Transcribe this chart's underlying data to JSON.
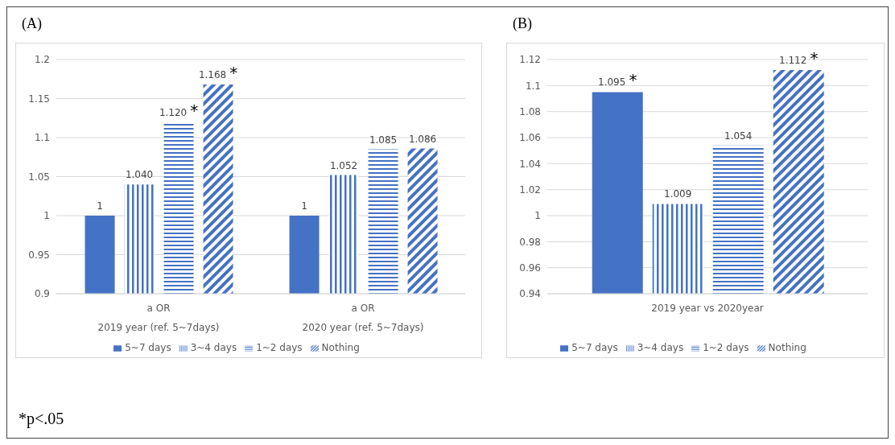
{
  "chart_data": [
    {
      "type": "bar",
      "title": "(A)",
      "categories": [
        "a OR\n2019 year (ref. 5~7days)",
        "a OR\n2020 year (ref. 5~7days)"
      ],
      "series": [
        {
          "name": "5~7 days",
          "color": "#4472c4",
          "values": [
            1,
            1
          ],
          "value_labels": [
            "1",
            "1"
          ]
        },
        {
          "name": "3~4 days",
          "color": "#4472c4",
          "values": [
            1.04,
            1.052
          ],
          "value_labels": [
            "1.040",
            "1.052"
          ]
        },
        {
          "name": "1~2 days",
          "color": "#4472c4",
          "values": [
            1.12,
            1.085
          ],
          "value_labels": [
            "1.120 *",
            "1.085"
          ]
        },
        {
          "name": "Nothing",
          "color": "#4472c4",
          "values": [
            1.168,
            1.086
          ],
          "value_labels": [
            "1.168 *",
            "1.086"
          ]
        }
      ],
      "ylim": [
        0.9,
        1.2
      ],
      "yticks": [
        0.9,
        0.95,
        1,
        1.05,
        1.1,
        1.15,
        1.2
      ],
      "grid": "y",
      "legend": "bottom",
      "annotations": [
        "*p<.05"
      ]
    },
    {
      "type": "bar",
      "title": "(B)",
      "categories": [
        "2019 year vs 2020year"
      ],
      "series": [
        {
          "name": "5~7 days",
          "color": "#4472c4",
          "values": [
            1.095
          ],
          "value_labels": [
            "1.095 *"
          ]
        },
        {
          "name": "3~4 days",
          "color": "#4472c4",
          "values": [
            1.009
          ],
          "value_labels": [
            "1.009"
          ]
        },
        {
          "name": "1~2 days",
          "color": "#4472c4",
          "values": [
            1.054
          ],
          "value_labels": [
            "1.054"
          ]
        },
        {
          "name": "Nothing",
          "color": "#4472c4",
          "values": [
            1.112
          ],
          "value_labels": [
            "1.112 *"
          ]
        }
      ],
      "ylim": [
        0.94,
        1.12
      ],
      "yticks": [
        0.94,
        0.96,
        0.98,
        1,
        1.02,
        1.04,
        1.06,
        1.08,
        1.1,
        1.12
      ],
      "grid": "y",
      "legend": "bottom"
    }
  ]
}
